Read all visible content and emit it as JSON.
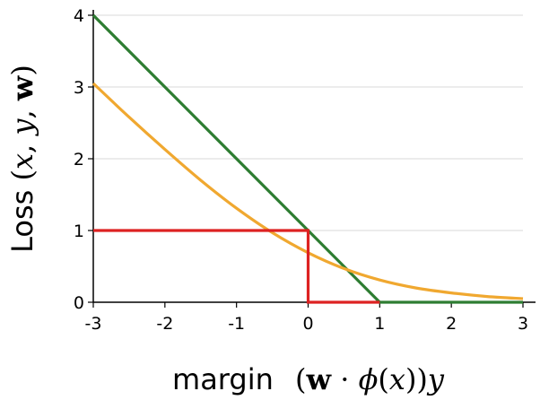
{
  "chart_data": {
    "type": "line",
    "title": "",
    "xlabel": {
      "text": "margin",
      "math_parts": [
        {
          "t": "(",
          "s": "normal"
        },
        {
          "t": "w",
          "s": "bold"
        },
        {
          "t": " · ",
          "s": "normal"
        },
        {
          "t": "ϕ",
          "s": "italic"
        },
        {
          "t": "(",
          "s": "normal"
        },
        {
          "t": "x",
          "s": "italic"
        },
        {
          "t": "))",
          "s": "normal"
        },
        {
          "t": "y",
          "s": "italic"
        }
      ]
    },
    "ylabel": {
      "text": "Loss",
      "math_parts": [
        {
          "t": "(",
          "s": "normal"
        },
        {
          "t": "x",
          "s": "italic"
        },
        {
          "t": ", ",
          "s": "normal"
        },
        {
          "t": "y",
          "s": "italic"
        },
        {
          "t": ", ",
          "s": "normal"
        },
        {
          "t": "w",
          "s": "bold"
        },
        {
          "t": ")",
          "s": "normal"
        }
      ]
    },
    "xlim": [
      -3,
      3
    ],
    "ylim": [
      0,
      4
    ],
    "xticks": [
      -3,
      -2,
      -1,
      0,
      1,
      2,
      3
    ],
    "xtick_labels": [
      "-3",
      "-2",
      "-1",
      "0",
      "1",
      "2",
      "3"
    ],
    "yticks": [
      0,
      1,
      2,
      3,
      4
    ],
    "ytick_labels": [
      "0",
      "1",
      "2",
      "3",
      "4"
    ],
    "grid": "horizontal",
    "legend": "none",
    "series": [
      {
        "color": "#2e7d32",
        "x": [
          -3,
          1,
          3
        ],
        "y": [
          4,
          0,
          0
        ]
      },
      {
        "color": "#f0a830",
        "x": [
          -3,
          -2.5,
          -2,
          -1.5,
          -1,
          -0.5,
          0,
          0.5,
          1,
          1.5,
          2,
          2.5,
          3
        ],
        "y": [
          3.05,
          2.58,
          2.13,
          1.7,
          1.31,
          0.97,
          0.69,
          0.47,
          0.31,
          0.2,
          0.13,
          0.08,
          0.05
        ]
      },
      {
        "color": "#dd2222",
        "x": [
          -3,
          0,
          0,
          1
        ],
        "y": [
          1,
          1,
          0,
          0
        ]
      }
    ]
  }
}
